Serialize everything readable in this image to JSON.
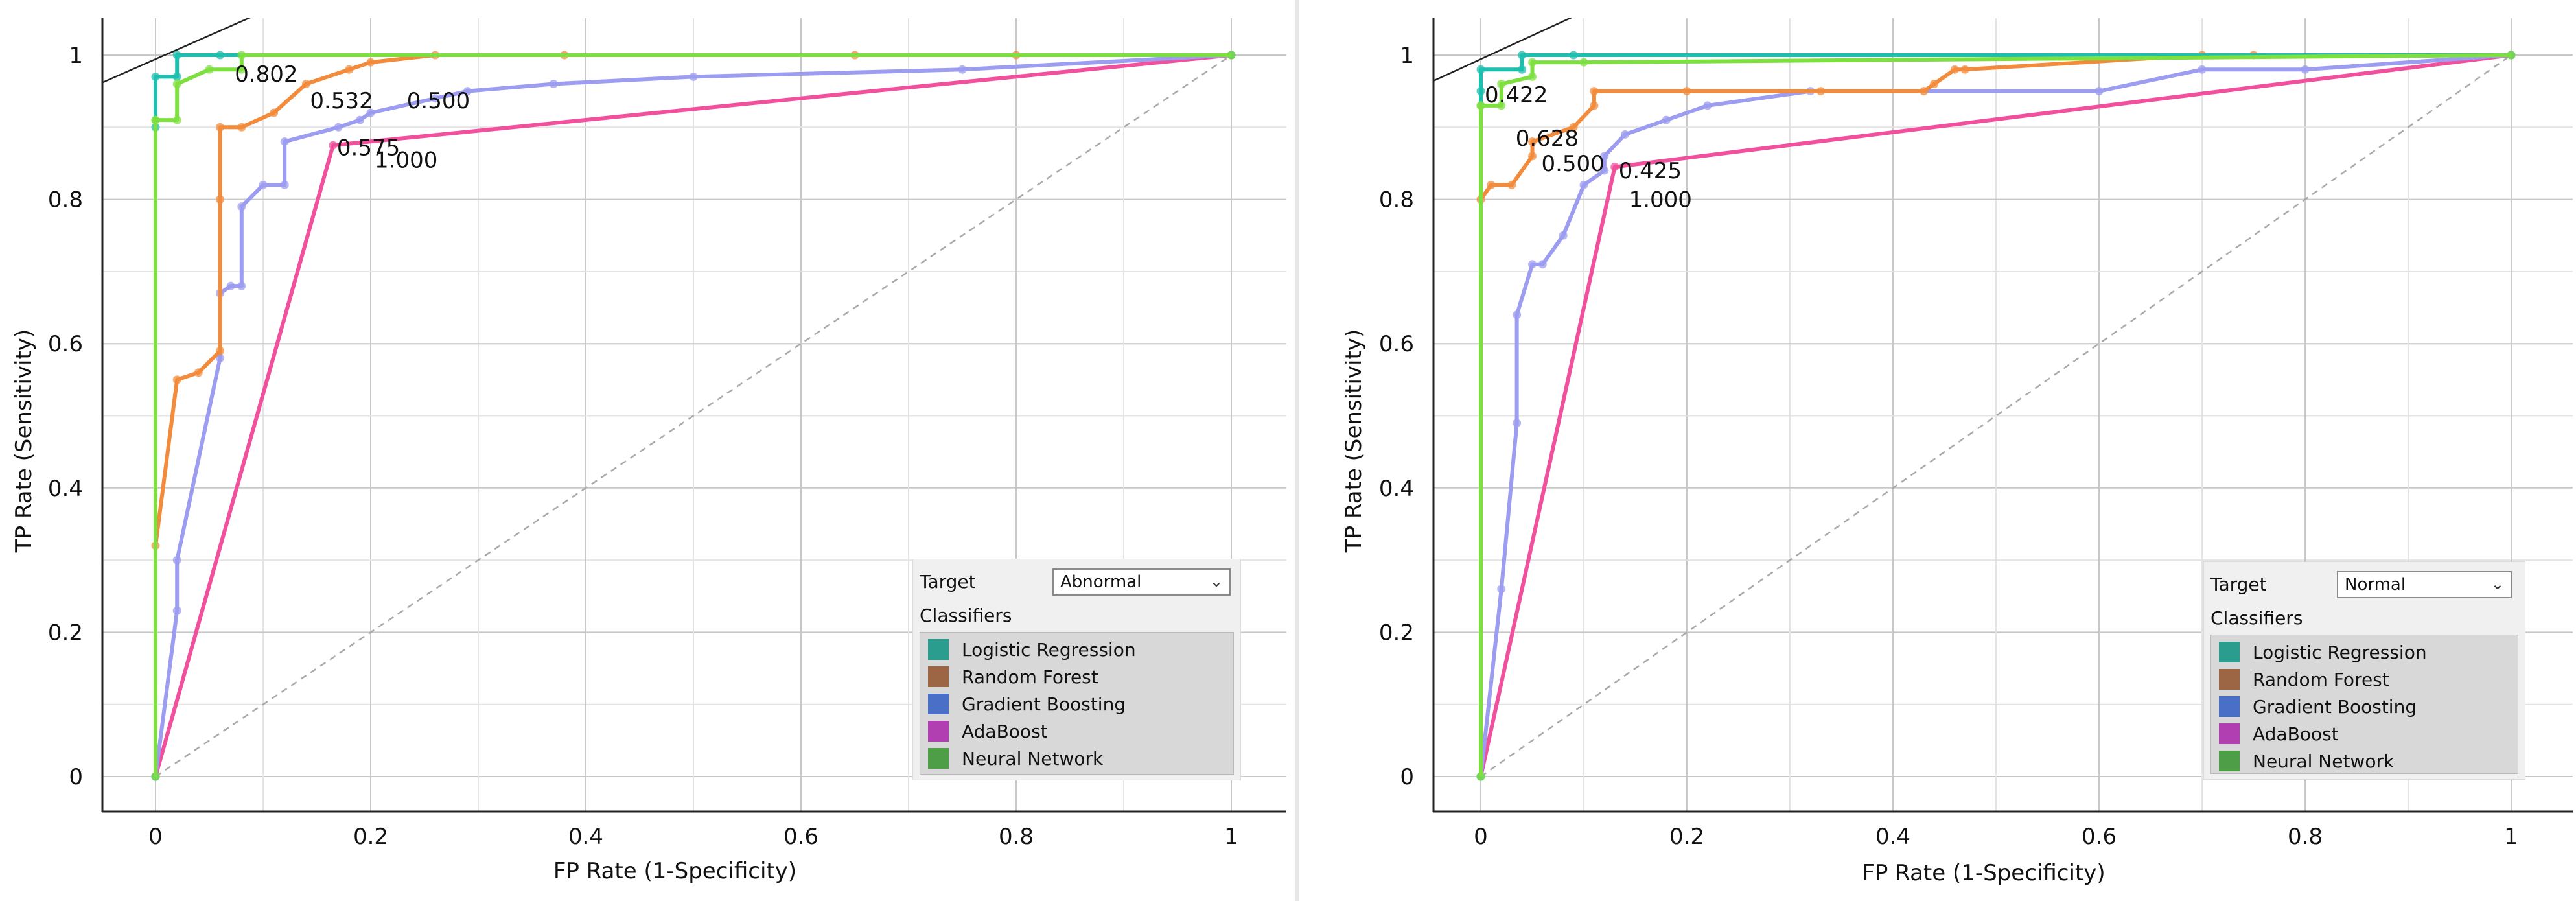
{
  "axis": {
    "xlabel": "FP Rate (1-Specificity)",
    "ylabel": "TP Rate (Sensitivity)",
    "xlim": [
      -0.05,
      1.03
    ],
    "ylim": [
      -0.05,
      1.04
    ],
    "xticks": [
      "0",
      "0.2",
      "0.4",
      "0.6",
      "0.8",
      "1"
    ],
    "yticks": [
      "0",
      "0.2",
      "0.4",
      "0.6",
      "0.8",
      "1"
    ]
  },
  "colors": {
    "logistic_regression": "#1ebfae",
    "random_forest": "#f28c3c",
    "gradient_boosting": "#9c9cf0",
    "adaboost": "#f0509c",
    "neural_network": "#7ee040",
    "diagonal": "#aaaaaa",
    "iso": "#222222"
  },
  "legend": {
    "target_label": "Target",
    "classifiers_label": "Classifiers",
    "items": [
      {
        "name": "Logistic Regression",
        "color": "#2a9d8f"
      },
      {
        "name": "Random Forest",
        "color": "#9c6644"
      },
      {
        "name": "Gradient Boosting",
        "color": "#4a6fc7"
      },
      {
        "name": "AdaBoost",
        "color": "#b13fb1"
      },
      {
        "name": "Neural Network",
        "color": "#4d9e46"
      }
    ]
  },
  "panels": [
    {
      "target_value": "Abnormal",
      "chart_data": {
        "type": "line",
        "title": "",
        "xlabel": "FP Rate (1-Specificity)",
        "ylabel": "TP Rate (Sensitivity)",
        "xlim": [
          0,
          1
        ],
        "ylim": [
          0,
          1
        ],
        "series": [
          {
            "name": "Logistic Regression",
            "x": [
              0,
              0,
              0,
              0.02,
              0.02,
              0.06,
              1
            ],
            "y": [
              0,
              0.9,
              0.97,
              0.97,
              1,
              1,
              1
            ]
          },
          {
            "name": "Random Forest",
            "x": [
              0,
              0,
              0.02,
              0.04,
              0.06,
              0.06,
              0.06,
              0.08,
              0.11,
              0.14,
              0.18,
              0.2,
              0.26,
              0.38,
              0.65,
              0.8,
              1
            ],
            "y": [
              0,
              0.32,
              0.55,
              0.56,
              0.59,
              0.8,
              0.9,
              0.9,
              0.92,
              0.96,
              0.98,
              0.99,
              1,
              1,
              1,
              1,
              1
            ]
          },
          {
            "name": "Gradient Boosting",
            "x": [
              0,
              0.02,
              0.02,
              0.06,
              0.06,
              0.07,
              0.08,
              0.08,
              0.1,
              0.12,
              0.12,
              0.17,
              0.19,
              0.2,
              0.26,
              0.29,
              0.37,
              0.5,
              0.75,
              1
            ],
            "y": [
              0,
              0.23,
              0.3,
              0.58,
              0.67,
              0.68,
              0.68,
              0.79,
              0.82,
              0.82,
              0.88,
              0.9,
              0.91,
              0.92,
              0.94,
              0.95,
              0.96,
              0.97,
              0.98,
              1
            ]
          },
          {
            "name": "AdaBoost",
            "x": [
              0,
              0.165,
              1
            ],
            "y": [
              0,
              0.875,
              1
            ]
          },
          {
            "name": "Neural Network",
            "x": [
              0,
              0,
              0,
              0.02,
              0.02,
              0.05,
              0.08,
              0.08,
              1
            ],
            "y": [
              0,
              0.91,
              0.91,
              0.91,
              0.96,
              0.98,
              0.98,
              1,
              1
            ]
          }
        ],
        "threshold_labels": [
          {
            "text": "0.802",
            "x": 0.07,
            "y": 0.974
          },
          {
            "text": "0.532",
            "x": 0.14,
            "y": 0.937
          },
          {
            "text": "0.500",
            "x": 0.23,
            "y": 0.937
          },
          {
            "text": "0.575",
            "x": 0.165,
            "y": 0.872
          },
          {
            "text": "1.000",
            "x": 0.2,
            "y": 0.855
          }
        ]
      }
    },
    {
      "target_value": "Normal",
      "chart_data": {
        "type": "line",
        "title": "",
        "xlabel": "FP Rate (1-Specificity)",
        "ylabel": "TP Rate (Sensitivity)",
        "xlim": [
          0,
          1
        ],
        "ylim": [
          0,
          1
        ],
        "series": [
          {
            "name": "Logistic Regression",
            "x": [
              0,
              0,
              0,
              0.04,
              0.04,
              0.09,
              1
            ],
            "y": [
              0,
              0.95,
              0.98,
              0.98,
              1,
              1,
              1
            ]
          },
          {
            "name": "Random Forest",
            "x": [
              0,
              0,
              0.01,
              0.03,
              0.05,
              0.05,
              0.09,
              0.11,
              0.11,
              0.2,
              0.33,
              0.43,
              0.44,
              0.46,
              0.47,
              0.7,
              0.75,
              1
            ],
            "y": [
              0,
              0.8,
              0.82,
              0.82,
              0.86,
              0.88,
              0.9,
              0.93,
              0.95,
              0.95,
              0.95,
              0.95,
              0.96,
              0.98,
              0.98,
              1,
              1,
              1
            ]
          },
          {
            "name": "Gradient Boosting",
            "x": [
              0,
              0.02,
              0.035,
              0.035,
              0.05,
              0.06,
              0.08,
              0.1,
              0.12,
              0.12,
              0.14,
              0.18,
              0.22,
              0.32,
              0.6,
              0.7,
              0.8,
              1
            ],
            "y": [
              0,
              0.26,
              0.49,
              0.64,
              0.71,
              0.71,
              0.75,
              0.82,
              0.84,
              0.86,
              0.89,
              0.91,
              0.93,
              0.95,
              0.95,
              0.98,
              0.98,
              1
            ]
          },
          {
            "name": "AdaBoost",
            "x": [
              0,
              0.13,
              1
            ],
            "y": [
              0,
              0.845,
              1
            ]
          },
          {
            "name": "Neural Network",
            "x": [
              0,
              0,
              0,
              0.02,
              0.02,
              0.05,
              0.05,
              0.1,
              1
            ],
            "y": [
              0,
              0.93,
              0.93,
              0.93,
              0.96,
              0.97,
              0.99,
              0.99,
              1
            ]
          }
        ],
        "threshold_labels": [
          {
            "text": "0.422",
            "x": 0.0,
            "y": 0.945
          },
          {
            "text": "0.628",
            "x": 0.03,
            "y": 0.885
          },
          {
            "text": "0.500",
            "x": 0.055,
            "y": 0.85
          },
          {
            "text": "0.425",
            "x": 0.13,
            "y": 0.84
          },
          {
            "text": "1.000",
            "x": 0.14,
            "y": 0.8
          }
        ]
      }
    }
  ]
}
